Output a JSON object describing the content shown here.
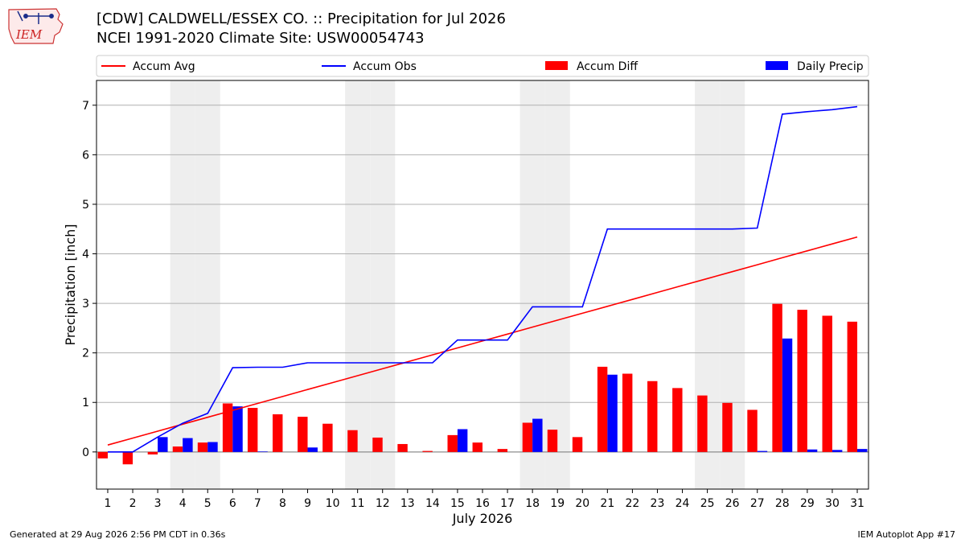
{
  "header": {
    "logo_text": "IEM",
    "title_line1": "[CDW] CALDWELL/ESSEX CO. :: Precipitation for Jul 2026",
    "title_line2": "NCEI 1991-2020 Climate Site: USW00054743"
  },
  "footer": {
    "generated": "Generated at 29 Aug 2026 2:56 PM CDT in 0.36s",
    "app": "IEM Autoplot App #17"
  },
  "colors": {
    "accum_avg": "#ff0000",
    "accum_obs": "#0000ff",
    "accum_diff": "#ff0000",
    "daily_precip": "#0000ff",
    "weekend_shade": "#eeeeee",
    "grid": "#b0b0b0"
  },
  "chart_data": {
    "type": "bar",
    "title": "[CDW] CALDWELL/ESSEX CO. :: Precipitation for Jul 2026",
    "subtitle": "NCEI 1991-2020 Climate Site: USW00054743",
    "xlabel": "July 2026",
    "ylabel": "Precipitation [inch]",
    "ylim": [
      -0.75,
      7.5
    ],
    "yticks": [
      0,
      1,
      2,
      3,
      4,
      5,
      6,
      7
    ],
    "grid": true,
    "legend_position": "top",
    "x": [
      1,
      2,
      3,
      4,
      5,
      6,
      7,
      8,
      9,
      10,
      11,
      12,
      13,
      14,
      15,
      16,
      17,
      18,
      19,
      20,
      21,
      22,
      23,
      24,
      25,
      26,
      27,
      28,
      29,
      30,
      31
    ],
    "weekend_days": [
      4,
      5,
      11,
      12,
      18,
      19,
      25,
      26
    ],
    "series": [
      {
        "name": "Accum Avg",
        "kind": "line",
        "values": [
          0.14,
          0.28,
          0.42,
          0.56,
          0.7,
          0.84,
          0.98,
          1.12,
          1.26,
          1.4,
          1.54,
          1.68,
          1.82,
          1.96,
          2.1,
          2.24,
          2.38,
          2.52,
          2.66,
          2.8,
          2.94,
          3.08,
          3.22,
          3.36,
          3.5,
          3.64,
          3.78,
          3.92,
          4.06,
          4.2,
          4.34
        ]
      },
      {
        "name": "Accum Obs",
        "kind": "line",
        "values": [
          0.0,
          0.0,
          0.3,
          0.58,
          0.78,
          1.7,
          1.71,
          1.71,
          1.8,
          1.8,
          1.8,
          1.8,
          1.8,
          1.8,
          2.26,
          2.26,
          2.26,
          2.93,
          2.93,
          2.93,
          4.5,
          4.5,
          4.5,
          4.5,
          4.5,
          4.5,
          4.52,
          6.82,
          6.87,
          6.91,
          6.97
        ]
      },
      {
        "name": "Accum Diff",
        "kind": "bar",
        "values": [
          -0.13,
          -0.25,
          -0.05,
          0.11,
          0.19,
          0.98,
          0.89,
          0.76,
          0.71,
          0.57,
          0.44,
          0.29,
          0.16,
          0.02,
          0.34,
          0.19,
          0.06,
          0.59,
          0.45,
          0.3,
          1.72,
          1.58,
          1.43,
          1.29,
          1.14,
          0.99,
          0.85,
          2.99,
          2.87,
          2.75,
          2.63
        ]
      },
      {
        "name": "Daily Precip",
        "kind": "bar",
        "values": [
          0.0,
          0.0,
          0.3,
          0.28,
          0.2,
          0.92,
          0.01,
          0.0,
          0.09,
          0.0,
          0.0,
          0.0,
          0.0,
          0.0,
          0.46,
          0.0,
          0.0,
          0.67,
          0.0,
          0.0,
          1.56,
          0.0,
          0.0,
          0.0,
          0.0,
          0.0,
          0.02,
          2.29,
          0.05,
          0.04,
          0.06
        ]
      }
    ]
  }
}
